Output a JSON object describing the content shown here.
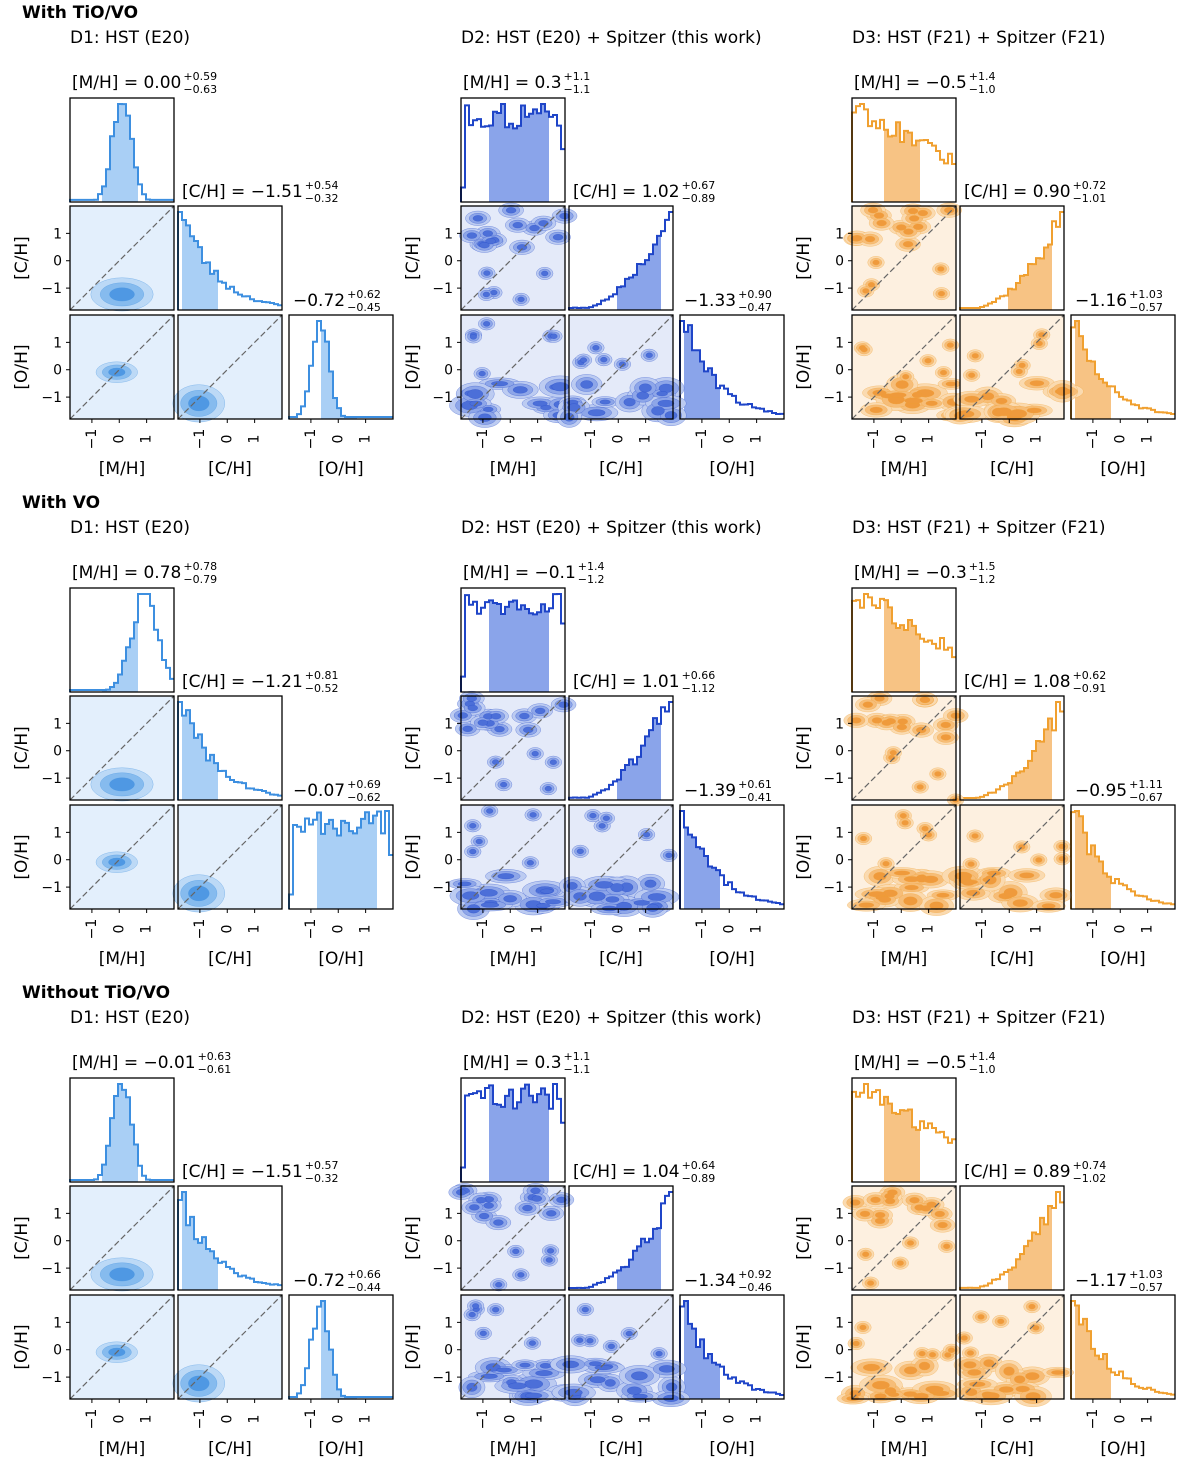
{
  "sections": [
    {
      "title": "With TiO/VO",
      "panels": [
        {
          "title": "D1: HST (E20)",
          "palette": "lightblue",
          "m": {
            "val": "0.00",
            "up": "+0.59",
            "lo": "−0.63"
          },
          "c": {
            "val": "−1.51",
            "up": "+0.54",
            "lo": "−0.32"
          },
          "o": {
            "val": "−0.72",
            "up": "+0.62",
            "lo": "−0.45"
          }
        },
        {
          "title": "D2: HST (E20) + Spitzer (this work)",
          "palette": "blue",
          "m": {
            "val": "0.3",
            "up": "+1.1",
            "lo": "−1.1"
          },
          "c": {
            "val": "1.02",
            "up": "+0.67",
            "lo": "−0.89"
          },
          "o": {
            "val": "−1.33",
            "up": "+0.90",
            "lo": "−0.47"
          }
        },
        {
          "title": "D3: HST (F21) + Spitzer (F21)",
          "palette": "orange",
          "m": {
            "val": "−0.5",
            "up": "+1.4",
            "lo": "−1.0"
          },
          "c": {
            "val": "0.90",
            "up": "+0.72",
            "lo": "−1.01"
          },
          "o": {
            "val": "−1.16",
            "up": "+1.03",
            "lo": "−0.57"
          }
        }
      ]
    },
    {
      "title": "With VO",
      "panels": [
        {
          "title": "D1: HST (E20)",
          "palette": "lightblue",
          "m": {
            "val": "0.78",
            "up": "+0.78",
            "lo": "−0.79"
          },
          "c": {
            "val": "−1.21",
            "up": "+0.81",
            "lo": "−0.52"
          },
          "o": {
            "val": "−0.07",
            "up": "+0.69",
            "lo": "−0.62"
          }
        },
        {
          "title": "D2: HST (E20) + Spitzer (this work)",
          "palette": "blue",
          "m": {
            "val": "−0.1",
            "up": "+1.4",
            "lo": "−1.2"
          },
          "c": {
            "val": "1.01",
            "up": "+0.66",
            "lo": "−1.12"
          },
          "o": {
            "val": "−1.39",
            "up": "+0.61",
            "lo": "−0.41"
          }
        },
        {
          "title": "D3: HST (F21) + Spitzer (F21)",
          "palette": "orange",
          "m": {
            "val": "−0.3",
            "up": "+1.5",
            "lo": "−1.2"
          },
          "c": {
            "val": "1.08",
            "up": "+0.62",
            "lo": "−0.91"
          },
          "o": {
            "val": "−0.95",
            "up": "+1.11",
            "lo": "−0.67"
          }
        }
      ]
    },
    {
      "title": "Without TiO/VO",
      "panels": [
        {
          "title": "D1: HST (E20)",
          "palette": "lightblue",
          "m": {
            "val": "−0.01",
            "up": "+0.63",
            "lo": "−0.61"
          },
          "c": {
            "val": "−1.51",
            "up": "+0.57",
            "lo": "−0.32"
          },
          "o": {
            "val": "−0.72",
            "up": "+0.66",
            "lo": "−0.44"
          }
        },
        {
          "title": "D2: HST (E20) + Spitzer (this work)",
          "palette": "blue",
          "m": {
            "val": "0.3",
            "up": "+1.1",
            "lo": "−1.1"
          },
          "c": {
            "val": "1.04",
            "up": "+0.64",
            "lo": "−0.89"
          },
          "o": {
            "val": "−1.34",
            "up": "+0.92",
            "lo": "−0.46"
          }
        },
        {
          "title": "D3: HST (F21) + Spitzer (F21)",
          "palette": "orange",
          "m": {
            "val": "−0.5",
            "up": "+1.4",
            "lo": "−1.0"
          },
          "c": {
            "val": "0.89",
            "up": "+0.74",
            "lo": "−1.02"
          },
          "o": {
            "val": "−1.17",
            "up": "+1.03",
            "lo": "−0.57"
          }
        }
      ]
    }
  ],
  "labels": {
    "m_stat": "[M/H] = ",
    "c_stat": "[C/H] = ",
    "axis_m": "[M/H]",
    "axis_c": "[C/H]",
    "axis_o": "[O/H]",
    "ticks": [
      "−1",
      "0",
      "1"
    ]
  },
  "colors": {
    "lightblue": {
      "line": "#3d8fe0",
      "fill": "#a9cff5",
      "c1": "#e3effc",
      "c2": "#bcd9f6",
      "c3": "#86bbee",
      "c4": "#4f98e3"
    },
    "blue": {
      "line": "#1f45c8",
      "fill": "#8aa4ea",
      "c1": "#e4eaf9",
      "c2": "#bccbf1",
      "c3": "#8ea6e8",
      "c4": "#4c6fd8"
    },
    "orange": {
      "line": "#f0a030",
      "fill": "#f7c384",
      "c1": "#fdf0e0",
      "c2": "#fadab0",
      "c3": "#f6bd78",
      "c4": "#ef9a3c"
    }
  },
  "chart_data": {
    "type": "corner",
    "grid": false,
    "parameters": [
      "[M/H]",
      "[C/H]",
      "[O/H]"
    ],
    "axis_range": [
      -1.8,
      2.0
    ],
    "tick_values": [
      -1,
      0,
      1
    ],
    "note_x_tick_values": "tick labels on x axes printed rotated",
    "one_to_one_line": true,
    "rows": [
      "With TiO/VO",
      "With VO",
      "Without TiO/VO"
    ],
    "columns": [
      "D1: HST (E20)",
      "D2: HST (E20) + Spitzer (this work)",
      "D3: HST (F21) + Spitzer (F21)"
    ]
  }
}
